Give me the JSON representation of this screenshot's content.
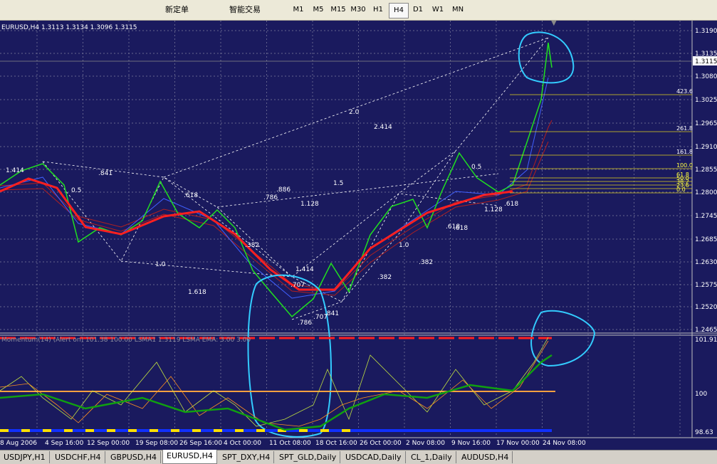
{
  "toolbar": {
    "buttons": [
      "新定单",
      "智能交易"
    ],
    "timeframes": [
      "M1",
      "M5",
      "M15",
      "M30",
      "H1",
      "H4",
      "D1",
      "W1",
      "MN"
    ],
    "active_timeframe": "H4"
  },
  "chart": {
    "header": "EURUSD,H4  1.3113 1.3134 1.3096 1.3115",
    "price_axis": [
      "1.3190",
      "1.3135",
      "1.3080",
      "1.3025",
      "1.2965",
      "1.2910",
      "1.2855",
      "1.2800",
      "1.2745",
      "1.2685",
      "1.2630",
      "1.2575",
      "1.2520",
      "1.2465"
    ],
    "current_price": "1.3115",
    "fib_levels": [
      "423.6",
      "261.8",
      "161.8",
      "100.0",
      "61.8",
      "50.0",
      "38.2",
      "23.6",
      "0.0"
    ],
    "annotations": [
      "2.0",
      "2.414",
      "1.414",
      ".841",
      "0.5",
      ".618",
      "1.0",
      "1.618",
      ".786",
      ".886",
      "1.5",
      "1.128",
      ".382",
      "1.414",
      ".707",
      ".841",
      ".786",
      ".707",
      ".382",
      "1.0",
      ".618",
      ".382",
      "0.5",
      "1.128",
      ".618",
      ".618"
    ],
    "indicator_header": "Momentum(14) (Alert on) 101.38 100.00 LSMA1 1.3119 LSMA EMA: 3.00 3.00",
    "indicator_axis": [
      "101.91",
      "100",
      "98.63"
    ],
    "time_axis": [
      "8 Aug 2006",
      "4 Sep 16:00",
      "12 Sep 00:00",
      "19 Sep 08:00",
      "26 Sep 16:00",
      "4 Oct 00:00",
      "11 Oct 08:00",
      "18 Oct 16:00",
      "26 Oct 00:00",
      "2 Nov 08:00",
      "9 Nov 16:00",
      "17 Nov 00:00",
      "24 Nov 08:00"
    ]
  },
  "tabs": [
    "USDJPY,H1",
    "USDCHF,H4",
    "GBPUSD,H4",
    "EURUSD,H4",
    "SPT_DXY,H4",
    "SPT_GLD,Daily",
    "USDCAD,Daily",
    "CL_1,Daily",
    "AUDUSD,H4"
  ],
  "active_tab": "EURUSD,H4"
}
